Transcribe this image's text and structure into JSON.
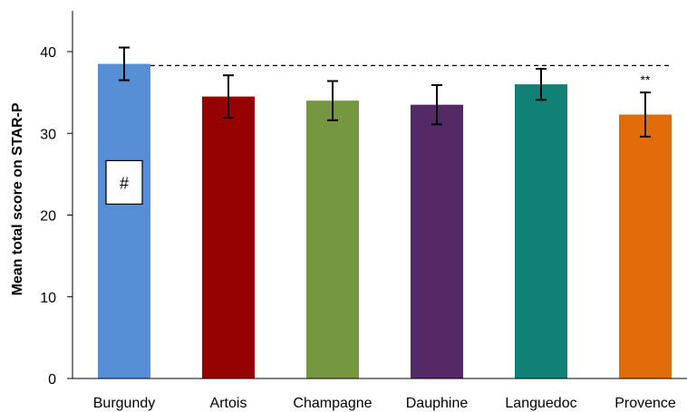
{
  "chart_data": {
    "type": "bar",
    "title": "",
    "xlabel": "",
    "ylabel": "Mean total score on STAR-P",
    "ylim": [
      0,
      45
    ],
    "yticks": [
      0,
      10,
      20,
      30,
      40
    ],
    "grid": false,
    "categories": [
      "Burgundy",
      "Artois",
      "Champagne",
      "Dauphine",
      "Languedoc",
      "Provence"
    ],
    "values": [
      38.5,
      34.5,
      34.0,
      33.5,
      36.0,
      32.3
    ],
    "errors": [
      2.0,
      2.6,
      2.4,
      2.4,
      1.9,
      2.7
    ],
    "colors": [
      "#558ED5",
      "#950000",
      "#779640",
      "#542968",
      "#118077",
      "#E36C0A"
    ],
    "reference_line": {
      "value": 38.3,
      "style": "dashed"
    },
    "annotations": [
      {
        "category": "Burgundy",
        "text": "#",
        "boxed": true,
        "value": 24
      },
      {
        "category": "Provence",
        "text": "**",
        "boxed": false,
        "value": 36
      }
    ]
  }
}
